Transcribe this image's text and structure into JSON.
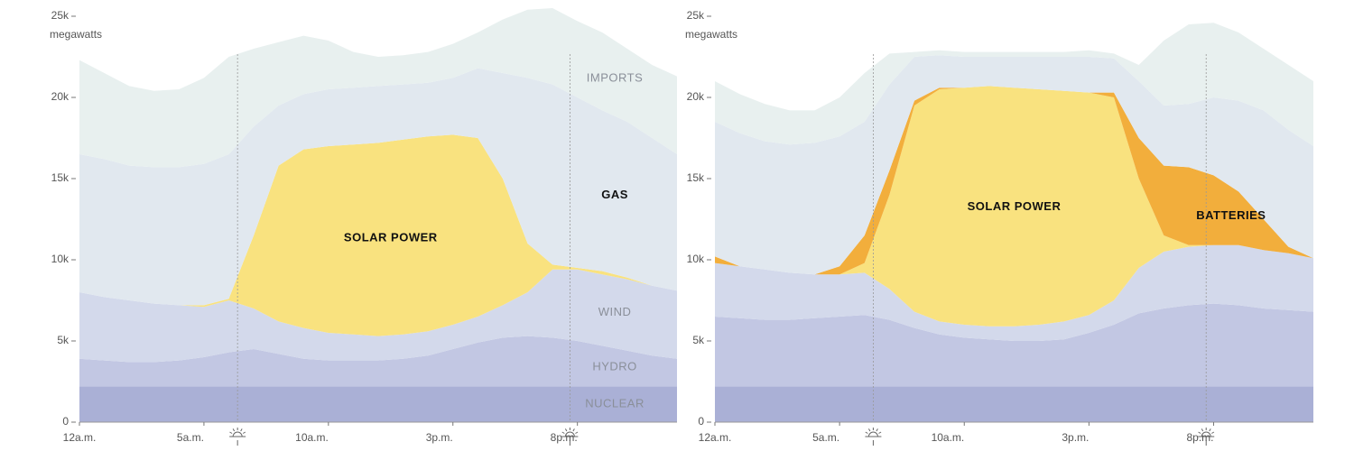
{
  "chart_data": [
    {
      "type": "stacked-area",
      "y_unit": "megawatts",
      "x": [
        0,
        1,
        2,
        3,
        4,
        5,
        6,
        7,
        8,
        9,
        10,
        11,
        12,
        13,
        14,
        15,
        16,
        17,
        18,
        19,
        20,
        21,
        22,
        23,
        24
      ],
      "xlim": [
        0,
        24
      ],
      "xticks": [
        {
          "value": 0,
          "label": "12a.m."
        },
        {
          "value": 5,
          "label": "5a.m."
        },
        {
          "value": 10,
          "label": "10a.m."
        },
        {
          "value": 15,
          "label": "3p.m."
        },
        {
          "value": 20,
          "label": "8p.m."
        }
      ],
      "ylim": [
        0,
        25000
      ],
      "yticks": [
        0,
        {
          "value": 5000,
          "label": "5k"
        },
        {
          "value": 10000,
          "label": "10k"
        },
        {
          "value": 15000,
          "label": "15k"
        },
        {
          "value": 20000,
          "label": "20k"
        },
        {
          "value": 25000,
          "label": "25k"
        }
      ],
      "sunrise": 6.35,
      "sunset": 19.7,
      "series": [
        {
          "name": "NUCLEAR",
          "color": "#aab0d6",
          "values": [
            2200,
            2200,
            2200,
            2200,
            2200,
            2200,
            2200,
            2200,
            2200,
            2200,
            2200,
            2200,
            2200,
            2200,
            2200,
            2200,
            2200,
            2200,
            2200,
            2200,
            2200,
            2200,
            2200,
            2200,
            2200
          ]
        },
        {
          "name": "HYDRO",
          "color": "#c2c7e3",
          "values": [
            1700,
            1600,
            1500,
            1500,
            1600,
            1800,
            2100,
            2300,
            2000,
            1700,
            1600,
            1600,
            1600,
            1700,
            1900,
            2300,
            2700,
            3000,
            3100,
            3000,
            2800,
            2500,
            2200,
            1900,
            1700
          ]
        },
        {
          "name": "WIND",
          "color": "#d3d9eb",
          "values": [
            4100,
            3900,
            3800,
            3600,
            3400,
            3100,
            3200,
            2500,
            2000,
            1900,
            1700,
            1600,
            1500,
            1500,
            1500,
            1500,
            1600,
            2000,
            2700,
            4200,
            4400,
            4400,
            4400,
            4300,
            4200
          ]
        },
        {
          "name": "SOLAR POWER",
          "color": "#f9e27f",
          "values": [
            0,
            0,
            0,
            0,
            0,
            100,
            100,
            4500,
            9600,
            11000,
            11500,
            11700,
            11900,
            12000,
            12000,
            11700,
            11000,
            7800,
            3000,
            300,
            100,
            200,
            100,
            0,
            0
          ]
        },
        {
          "name": "GAS",
          "color": "#e1e8ef",
          "values": [
            8500,
            8500,
            8300,
            8400,
            8500,
            8700,
            8900,
            6700,
            3700,
            3400,
            3500,
            3500,
            3500,
            3400,
            3300,
            3500,
            4300,
            6500,
            10200,
            11100,
            10500,
            9900,
            9600,
            9100,
            8400
          ]
        },
        {
          "name": "IMPORTS",
          "color": "#e8f0ef",
          "values": [
            5800,
            5300,
            4900,
            4700,
            4800,
            5300,
            6000,
            4800,
            3900,
            3600,
            3000,
            2200,
            1800,
            1800,
            1900,
            2100,
            2200,
            3300,
            4200,
            4700,
            4700,
            4800,
            4500,
            4500,
            4800
          ]
        }
      ]
    },
    {
      "type": "stacked-area",
      "y_unit": "megawatts",
      "x": [
        0,
        1,
        2,
        3,
        4,
        5,
        6,
        7,
        8,
        9,
        10,
        11,
        12,
        13,
        14,
        15,
        16,
        17,
        18,
        19,
        20,
        21,
        22,
        23,
        24
      ],
      "xlim": [
        0,
        24
      ],
      "xticks": [
        {
          "value": 0,
          "label": "12a.m."
        },
        {
          "value": 5,
          "label": "5a.m."
        },
        {
          "value": 10,
          "label": "10a.m."
        },
        {
          "value": 15,
          "label": "3p.m."
        },
        {
          "value": 20,
          "label": "8p.m."
        }
      ],
      "ylim": [
        0,
        25000
      ],
      "yticks": [
        0,
        {
          "value": 5000,
          "label": "5k"
        },
        {
          "value": 10000,
          "label": "10k"
        },
        {
          "value": 15000,
          "label": "15k"
        },
        {
          "value": 20000,
          "label": "20k"
        },
        {
          "value": 25000,
          "label": "25k"
        }
      ],
      "sunrise": 6.35,
      "sunset": 19.7,
      "series": [
        {
          "color": "#aab0d6",
          "values": [
            2200,
            2200,
            2200,
            2200,
            2200,
            2200,
            2200,
            2200,
            2200,
            2200,
            2200,
            2200,
            2200,
            2200,
            2200,
            2200,
            2200,
            2200,
            2200,
            2200,
            2200,
            2200,
            2200,
            2200,
            2200
          ]
        },
        {
          "color": "#c2c7e3",
          "values": [
            4300,
            4200,
            4100,
            4100,
            4200,
            4300,
            4400,
            4100,
            3600,
            3200,
            3000,
            2900,
            2800,
            2800,
            2900,
            3300,
            3800,
            4500,
            4800,
            5000,
            5100,
            5000,
            4800,
            4700,
            4600
          ]
        },
        {
          "color": "#d3d9eb",
          "values": [
            3300,
            3200,
            3100,
            2900,
            2700,
            2600,
            2600,
            1900,
            1000,
            800,
            800,
            800,
            900,
            1000,
            1100,
            1100,
            1500,
            2800,
            3500,
            3600,
            3600,
            3700,
            3600,
            3500,
            3300
          ]
        },
        {
          "name": "SOLAR POWER",
          "color": "#f9e27f",
          "values": [
            0,
            0,
            0,
            0,
            0,
            0,
            600,
            5800,
            12700,
            14300,
            14600,
            14800,
            14700,
            14500,
            14200,
            13700,
            12500,
            5500,
            1000,
            100,
            0,
            0,
            0,
            0,
            0
          ]
        },
        {
          "name": "BATTERIES",
          "color": "#f2ae3c",
          "values": [
            400,
            0,
            0,
            0,
            0,
            500,
            1700,
            1500,
            300,
            100,
            0,
            0,
            0,
            0,
            0,
            0,
            300,
            2500,
            4300,
            4800,
            4300,
            3300,
            1900,
            400,
            0
          ]
        },
        {
          "color": "#e1e8ef",
          "values": [
            8300,
            8200,
            7900,
            7900,
            8100,
            8000,
            7000,
            5300,
            2700,
            2000,
            1900,
            1800,
            1900,
            2000,
            2100,
            2200,
            2100,
            3500,
            3700,
            3900,
            4800,
            5600,
            6700,
            7200,
            6900
          ]
        },
        {
          "color": "#e8f0ef",
          "values": [
            2500,
            2400,
            2300,
            2100,
            2000,
            2400,
            3000,
            1900,
            300,
            300,
            300,
            300,
            300,
            300,
            300,
            400,
            300,
            1000,
            4000,
            4900,
            4600,
            4200,
            3800,
            4000,
            4000
          ]
        }
      ]
    }
  ]
}
